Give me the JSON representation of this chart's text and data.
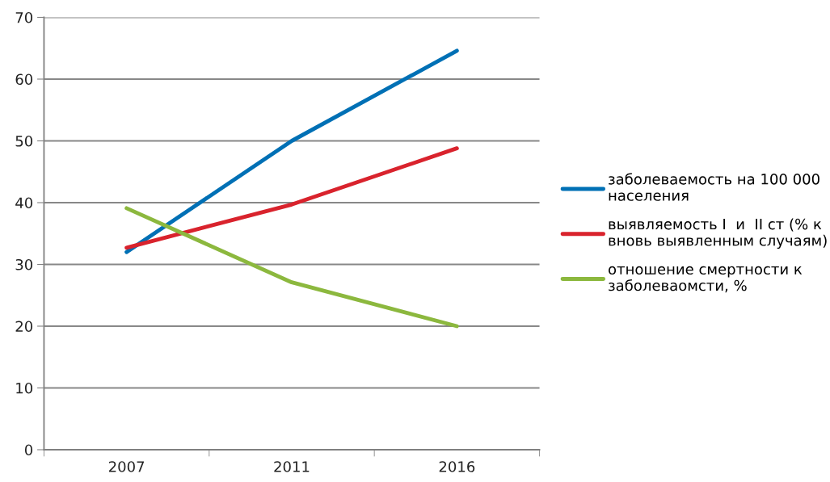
{
  "chart_data": {
    "type": "line",
    "categories": [
      "2007",
      "2011",
      "2016"
    ],
    "series": [
      {
        "name": "заболеваемость на 100 000\nнаселения",
        "color": "#0070b5",
        "values": [
          32,
          50,
          64.6
        ]
      },
      {
        "name": "выявляемость I  и  II ст (% к\nвновь выявленным случаям)",
        "color": "#d9232d",
        "values": [
          32.7,
          39.7,
          48.8
        ]
      },
      {
        "name": "отношение смертности к\nзаболеваомсти, %",
        "color": "#8cb83e",
        "values": [
          39.1,
          27.1,
          20
        ]
      }
    ],
    "ylim": [
      0,
      70
    ],
    "yticks": [
      0,
      10,
      20,
      30,
      40,
      50,
      60,
      70
    ],
    "grid": "y",
    "legend": "right",
    "marker": "none",
    "line_style": "solid"
  }
}
